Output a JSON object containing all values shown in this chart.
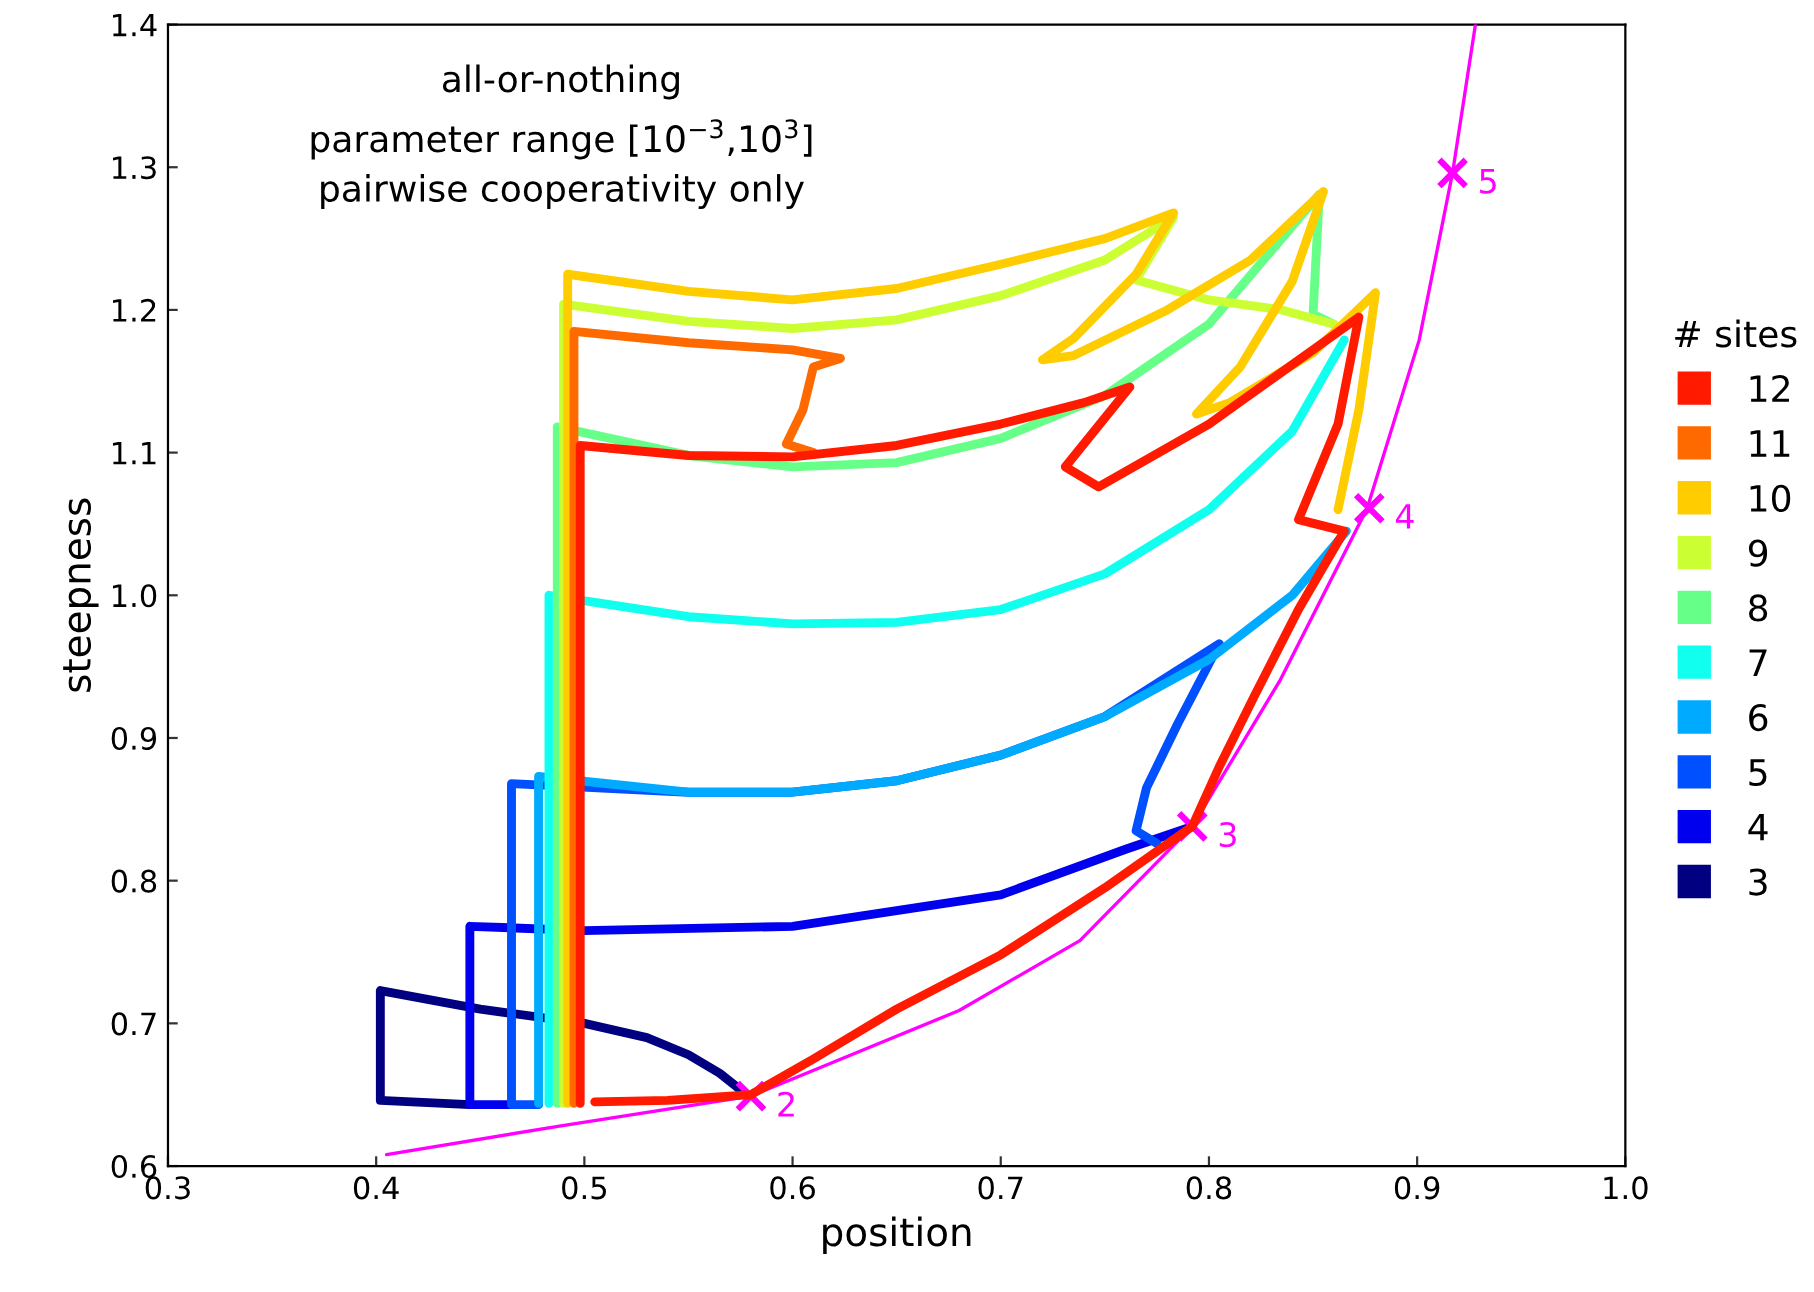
{
  "chart_data": {
    "type": "line",
    "xlabel": "position",
    "ylabel": "steepness",
    "legend_title": "# sites",
    "legend": "right",
    "grid": false,
    "xlim": [
      0.3,
      1.0
    ],
    "xticks": [
      0.3,
      0.4,
      0.5,
      0.6,
      0.7,
      0.8,
      0.9,
      {
        "value": 1.0,
        "label": "1.0"
      }
    ],
    "ylim": [
      0.6,
      1.4
    ],
    "yticks": [
      0.6,
      0.7,
      0.8,
      0.9,
      {
        "value": 1.0,
        "label": "1.0"
      },
      1.1,
      1.2,
      1.3,
      1.4
    ],
    "annotations": [
      "all-or-nothing",
      "parameter range [10$^{−3}$,10$^{3}$]",
      "pairwise cooperativity only",
      {
        "text": "2",
        "x": 0.58,
        "y": 0.649
      },
      {
        "text": "3",
        "x": 0.792,
        "y": 0.838
      },
      {
        "text": "4",
        "x": 0.877,
        "y": 1.061
      },
      {
        "text": "5",
        "x": 0.917,
        "y": 1.296
      }
    ],
    "series": [
      {
        "name": "12",
        "color": "#ff1a00",
        "x": [
          0.498,
          0.498,
          0.55,
          0.6,
          0.65,
          0.7,
          0.74,
          0.762,
          0.731,
          0.747,
          0.8,
          0.872,
          0.862,
          0.843,
          0.865,
          0.843,
          0.822,
          0.805,
          0.792,
          0.75,
          0.7,
          0.65,
          0.61,
          0.58,
          0.54,
          0.505
        ],
        "values": [
          0.644,
          1.105,
          1.098,
          1.097,
          1.105,
          1.12,
          1.135,
          1.146,
          1.09,
          1.076,
          1.12,
          1.195,
          1.12,
          1.053,
          1.045,
          0.99,
          0.93,
          0.88,
          0.838,
          0.795,
          0.748,
          0.71,
          0.675,
          0.65,
          0.646,
          0.645
        ]
      },
      {
        "name": "11",
        "color": "#ff6a00",
        "x": [
          0.495,
          0.495,
          0.55,
          0.6,
          0.623,
          0.61,
          0.605,
          0.597,
          0.61
        ],
        "values": [
          0.644,
          1.185,
          1.177,
          1.172,
          1.166,
          1.16,
          1.13,
          1.106,
          1.1
        ]
      },
      {
        "name": "10",
        "color": "#ffcc00",
        "x": [
          0.492,
          0.492,
          0.55,
          0.6,
          0.65,
          0.7,
          0.75,
          0.783,
          0.765,
          0.735,
          0.72,
          0.735,
          0.78,
          0.82,
          0.855,
          0.84,
          0.815,
          0.794,
          0.81,
          0.85,
          0.88,
          0.872,
          0.862
        ],
        "values": [
          0.644,
          1.225,
          1.213,
          1.207,
          1.215,
          1.232,
          1.25,
          1.268,
          1.225,
          1.18,
          1.165,
          1.168,
          1.2,
          1.235,
          1.283,
          1.22,
          1.16,
          1.127,
          1.135,
          1.17,
          1.212,
          1.13,
          1.06
        ]
      },
      {
        "name": "9",
        "color": "#ccff33",
        "x": [
          0.49,
          0.49,
          0.55,
          0.6,
          0.65,
          0.7,
          0.75,
          0.783,
          0.765,
          0.8,
          0.835,
          0.86
        ],
        "values": [
          0.644,
          1.204,
          1.192,
          1.187,
          1.193,
          1.21,
          1.235,
          1.265,
          1.221,
          1.207,
          1.2,
          1.19
        ]
      },
      {
        "name": "8",
        "color": "#66ff88",
        "x": [
          0.487,
          0.487,
          0.55,
          0.6,
          0.65,
          0.7,
          0.75,
          0.8,
          0.853,
          0.85,
          0.86
        ],
        "values": [
          0.644,
          1.118,
          1.098,
          1.09,
          1.093,
          1.11,
          1.14,
          1.19,
          1.281,
          1.197,
          1.19
        ]
      },
      {
        "name": "7",
        "color": "#11ffee",
        "x": [
          0.483,
          0.483,
          0.55,
          0.6,
          0.65,
          0.7,
          0.75,
          0.8,
          0.84,
          0.865
        ],
        "values": [
          0.644,
          1.0,
          0.985,
          0.98,
          0.981,
          0.99,
          1.015,
          1.06,
          1.115,
          1.179
        ]
      },
      {
        "name": "6",
        "color": "#00aaff",
        "x": [
          0.478,
          0.478,
          0.55,
          0.6,
          0.65,
          0.7,
          0.75,
          0.8,
          0.84,
          0.866
        ],
        "values": [
          0.644,
          0.873,
          0.862,
          0.862,
          0.87,
          0.888,
          0.915,
          0.955,
          1.0,
          1.045
        ]
      },
      {
        "name": "5",
        "color": "#0050ff",
        "x": [
          0.478,
          0.465,
          0.465,
          0.55,
          0.6,
          0.65,
          0.7,
          0.75,
          0.805,
          0.785,
          0.77,
          0.765,
          0.775
        ],
        "values": [
          0.643,
          0.643,
          0.868,
          0.862,
          0.862,
          0.87,
          0.888,
          0.915,
          0.966,
          0.91,
          0.865,
          0.835,
          0.826
        ]
      },
      {
        "name": "4",
        "color": "#0000ee",
        "x": [
          0.465,
          0.445,
          0.445,
          0.5,
          0.6,
          0.7,
          0.76,
          0.792
        ],
        "values": [
          0.643,
          0.643,
          0.768,
          0.765,
          0.768,
          0.79,
          0.822,
          0.838
        ]
      },
      {
        "name": "3",
        "color": "#000080",
        "x": [
          0.445,
          0.402,
          0.402,
          0.45,
          0.5,
          0.53,
          0.55,
          0.565,
          0.578
        ],
        "values": [
          0.643,
          0.646,
          0.723,
          0.71,
          0.7,
          0.69,
          0.678,
          0.665,
          0.65
        ]
      },
      {
        "type": "line",
        "color": "#ff00ff",
        "x": [
          0.405,
          0.488,
          0.58,
          0.68,
          0.738,
          0.792,
          0.834,
          0.876,
          0.901,
          0.917,
          0.928
        ],
        "values": [
          0.608,
          0.628,
          0.649,
          0.709,
          0.758,
          0.838,
          0.94,
          1.061,
          1.179,
          1.296,
          1.4
        ]
      },
      {
        "type": "scatter",
        "marker": "cross",
        "color": "#ff00ff",
        "x": [
          0.58,
          0.792,
          0.877,
          0.917
        ],
        "values": [
          0.649,
          0.838,
          1.061,
          1.296
        ]
      }
    ]
  }
}
